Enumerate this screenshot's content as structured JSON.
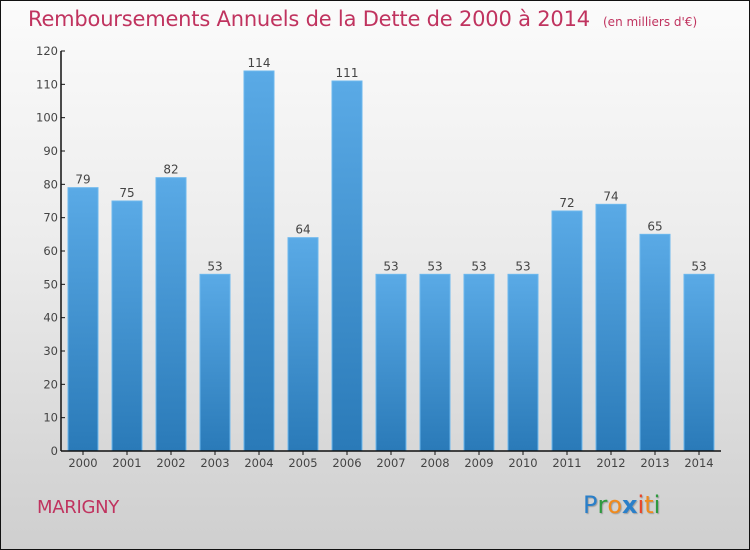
{
  "chart_data": {
    "type": "bar",
    "title": "Remboursements Annuels de la Dette de 2000 à 2014",
    "subtitle": "(en milliers d'€)",
    "xlabel": "",
    "ylabel": "",
    "categories": [
      "2000",
      "2001",
      "2002",
      "2003",
      "2004",
      "2005",
      "2006",
      "2007",
      "2008",
      "2009",
      "2010",
      "2011",
      "2012",
      "2013",
      "2014"
    ],
    "values": [
      79,
      75,
      82,
      53,
      114,
      64,
      111,
      53,
      53,
      53,
      53,
      72,
      74,
      65,
      53
    ],
    "ylim": [
      0,
      120
    ],
    "yticks": [
      0,
      10,
      20,
      30,
      40,
      50,
      60,
      70,
      80,
      90,
      100,
      110,
      120
    ],
    "grid": false,
    "data_labels": true,
    "bar_color_top": "#5aaae6",
    "bar_color_bottom": "#2a7ab8",
    "legend": "none"
  },
  "footer": {
    "commune": "MARIGNY",
    "logo_letters": [
      {
        "char": "P",
        "color": "#2a7fc9"
      },
      {
        "char": "r",
        "color": "#2e9a3f"
      },
      {
        "char": "o",
        "color": "#f08a1c"
      },
      {
        "char": "x",
        "color": "#2a7fc9"
      },
      {
        "char": "i",
        "color": "#e8472a"
      },
      {
        "char": "t",
        "color": "#f08a1c"
      },
      {
        "char": "i",
        "color": "#2e9a3f"
      }
    ]
  },
  "colors": {
    "title": "#c0335f",
    "axis": "#111111",
    "text": "#444444"
  }
}
